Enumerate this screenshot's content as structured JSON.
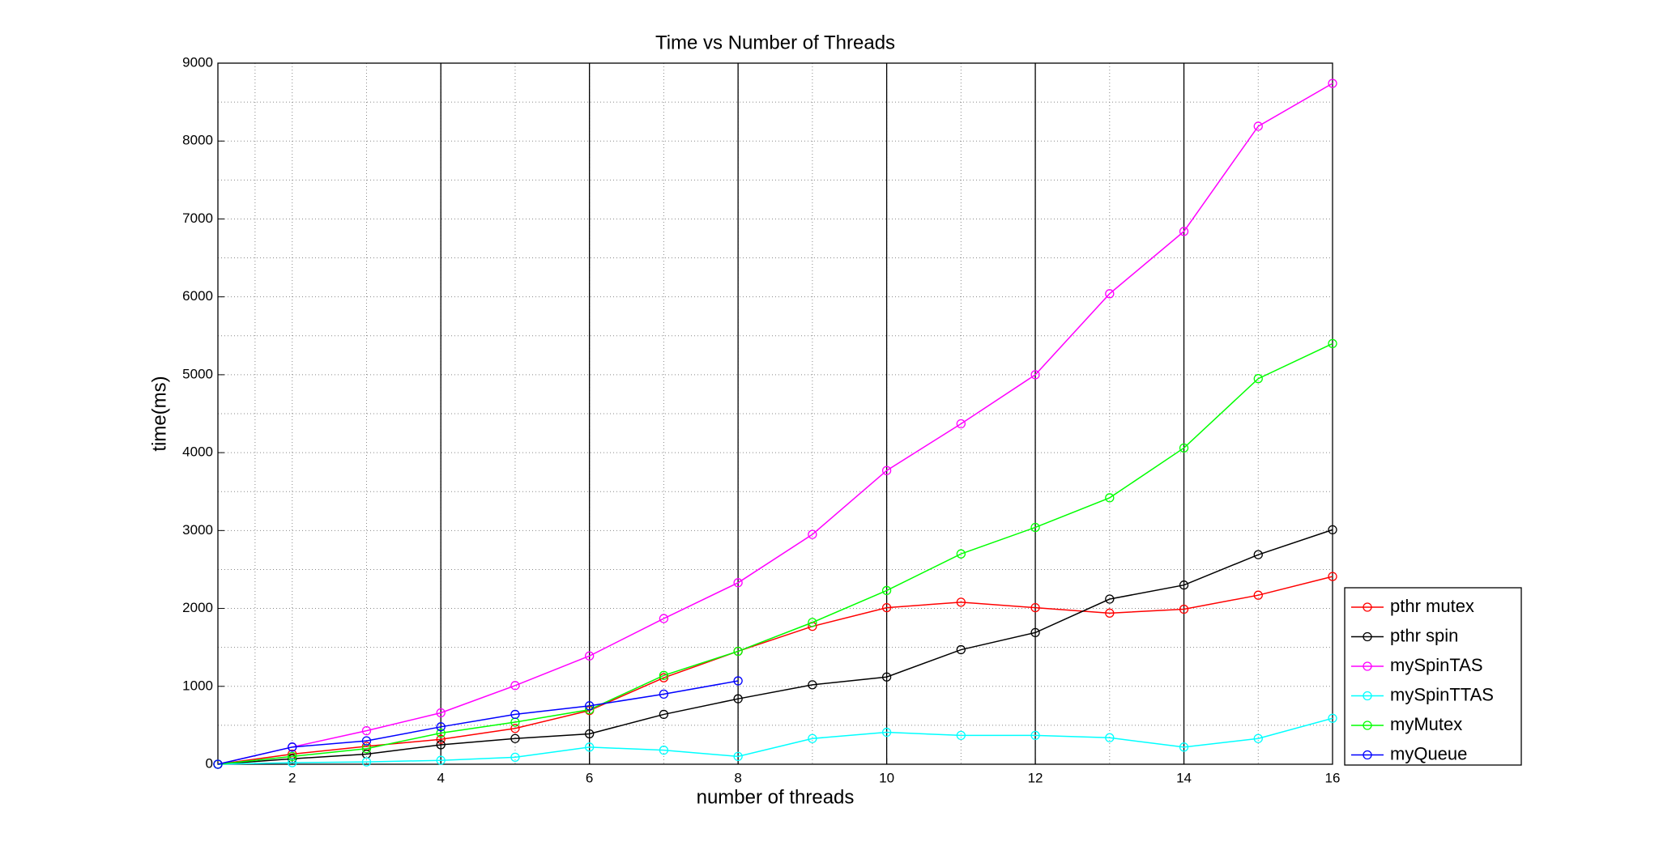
{
  "chart_data": {
    "type": "line",
    "title": "Time vs Number of Threads",
    "xlabel": "number of threads",
    "ylabel": "time(ms)",
    "x": [
      1,
      2,
      3,
      4,
      5,
      6,
      7,
      8,
      9,
      10,
      11,
      12,
      13,
      14,
      15,
      16
    ],
    "series": [
      {
        "name": "pthr mutex",
        "color": "#ff0000",
        "values": [
          0,
          130,
          230,
          320,
          460,
          690,
          1110,
          1450,
          1770,
          2010,
          2080,
          2010,
          1940,
          1990,
          2170,
          2410
        ]
      },
      {
        "name": "pthr spin",
        "color": "#000000",
        "values": [
          0,
          70,
          130,
          250,
          330,
          390,
          640,
          840,
          1020,
          1120,
          1470,
          1690,
          2120,
          2300,
          2690,
          3010
        ]
      },
      {
        "name": "mySpinTAS",
        "color": "#ff00ff",
        "values": [
          0,
          220,
          430,
          660,
          1010,
          1390,
          1870,
          2330,
          2950,
          3770,
          4370,
          5000,
          6040,
          6840,
          8190,
          8740
        ]
      },
      {
        "name": "mySpinTTAS",
        "color": "#00ffff",
        "values": [
          0,
          20,
          30,
          50,
          90,
          220,
          180,
          100,
          330,
          410,
          370,
          370,
          340,
          220,
          330,
          590
        ]
      },
      {
        "name": "myMutex",
        "color": "#00ff00",
        "values": [
          0,
          100,
          200,
          400,
          540,
          700,
          1140,
          1450,
          1820,
          2230,
          2700,
          3040,
          3420,
          4060,
          4950,
          5400
        ]
      },
      {
        "name": "myQueue",
        "color": "#0000ff",
        "values": [
          0,
          220,
          300,
          480,
          640,
          750,
          900,
          1070,
          null,
          null,
          null,
          null,
          null,
          null,
          null,
          null
        ]
      }
    ],
    "xlim": [
      1,
      16
    ],
    "xticks": [
      2,
      4,
      6,
      8,
      10,
      12,
      14,
      16
    ],
    "ylim": [
      0,
      9000
    ],
    "yticks": [
      0,
      1000,
      2000,
      3000,
      4000,
      5000,
      6000,
      7000,
      8000,
      9000
    ],
    "vertical_lines": [
      4,
      6,
      8,
      10,
      12,
      14
    ],
    "grid": true,
    "legend": "outside lower right"
  }
}
